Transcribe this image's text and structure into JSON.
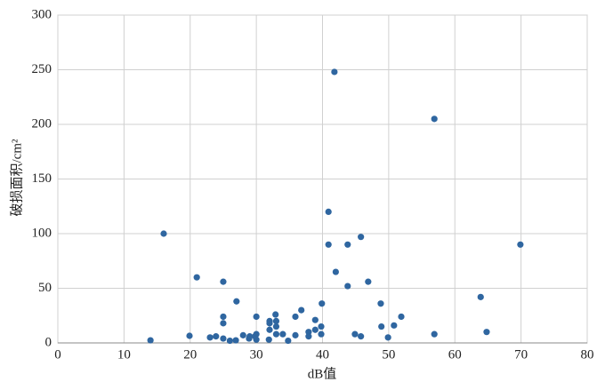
{
  "chart_data": {
    "type": "scatter",
    "x_label": "dB值",
    "y_label": "破损面积/cm²",
    "color": "#2f66a0",
    "grid": true,
    "xlim": [
      0,
      80
    ],
    "xticks": [
      0,
      10,
      20,
      30,
      40,
      50,
      60,
      70,
      80
    ],
    "ylim": [
      0,
      300
    ],
    "yticks": [
      0,
      50,
      100,
      150,
      200,
      250,
      300
    ],
    "x": [
      14,
      16,
      19.9,
      21,
      23,
      23.9,
      25,
      25,
      25,
      25,
      26,
      26.9,
      27,
      28,
      28.9,
      29,
      29.8,
      30,
      30,
      30,
      31.9,
      32,
      32,
      32,
      32.9,
      33,
      33,
      33,
      34,
      34.8,
      35.9,
      35.9,
      36.8,
      37.9,
      37.9,
      38.9,
      38.9,
      39.8,
      39.8,
      39.9,
      40.9,
      40.9,
      41.8,
      42,
      43.8,
      43.8,
      44.9,
      45.8,
      45.8,
      46.9,
      48.8,
      48.9,
      49.9,
      50.8,
      51.9,
      56.9,
      56.9,
      63.9,
      64.8,
      69.9
    ],
    "y": [
      2.4,
      100,
      6.5,
      60,
      5,
      6,
      4,
      56,
      24,
      18,
      2,
      2.4,
      38,
      7,
      4,
      6,
      6,
      8,
      24,
      3,
      3,
      20,
      18,
      12,
      26,
      20,
      15,
      8,
      8,
      2,
      7,
      24,
      30,
      10,
      6,
      12,
      21,
      15,
      8,
      36,
      120,
      90,
      248,
      65,
      90,
      52,
      8,
      97,
      6,
      56,
      36,
      15,
      5,
      16,
      24,
      205,
      8,
      42,
      10,
      90
    ]
  }
}
